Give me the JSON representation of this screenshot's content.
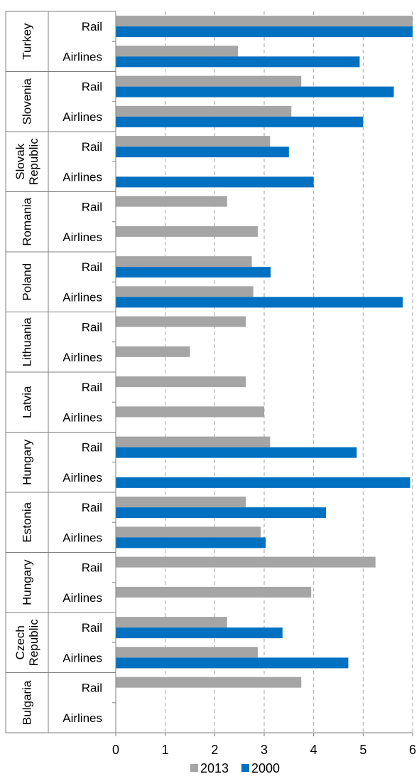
{
  "chart_data": {
    "type": "bar",
    "orientation": "horizontal",
    "groups": [
      {
        "name": "Turkey",
        "lines": [
          "Turkey"
        ]
      },
      {
        "name": "Slovenia",
        "lines": [
          "Slovenia"
        ]
      },
      {
        "name": "Slovak Republic",
        "lines": [
          "Slovak",
          "Republic"
        ]
      },
      {
        "name": "Romania",
        "lines": [
          "Romania"
        ]
      },
      {
        "name": "Poland",
        "lines": [
          "Poland"
        ]
      },
      {
        "name": "Lithuania",
        "lines": [
          "Lithuania"
        ]
      },
      {
        "name": "Latvia",
        "lines": [
          "Latvia"
        ]
      },
      {
        "name": "Hungary",
        "lines": [
          "Hungary"
        ]
      },
      {
        "name": "Estonia",
        "lines": [
          "Estonia"
        ]
      },
      {
        "name": "Hungary",
        "lines": [
          "Hungary"
        ]
      },
      {
        "name": "Czech Republic",
        "lines": [
          "Czech",
          "Republic"
        ]
      },
      {
        "name": "Bulgaria",
        "lines": [
          "Bulgaria"
        ]
      }
    ],
    "subcategories": [
      "Rail",
      "Airlines"
    ],
    "series": [
      {
        "name": "2013",
        "color": "#a5a5a5",
        "values": [
          [
            6.0,
            2.47
          ],
          [
            3.75,
            3.55
          ],
          [
            3.12,
            null
          ],
          [
            2.25,
            2.87
          ],
          [
            2.75,
            2.78
          ],
          [
            2.63,
            1.5
          ],
          [
            2.63,
            3.0
          ],
          [
            3.12,
            null
          ],
          [
            2.63,
            2.93
          ],
          [
            5.25,
            3.95
          ],
          [
            2.25,
            2.87
          ],
          [
            3.75,
            null
          ]
        ]
      },
      {
        "name": "2000",
        "color": "#0070c0",
        "values": [
          [
            6.0,
            4.93
          ],
          [
            5.62,
            5.0
          ],
          [
            3.5,
            4.0
          ],
          [
            null,
            null
          ],
          [
            3.13,
            5.8
          ],
          [
            null,
            null
          ],
          [
            null,
            null
          ],
          [
            4.87,
            5.95
          ],
          [
            4.25,
            3.03
          ],
          [
            null,
            null
          ],
          [
            3.37,
            4.7
          ],
          [
            null,
            null
          ]
        ]
      }
    ],
    "x_ticks": [
      "0",
      "1",
      "2",
      "3",
      "4",
      "5",
      "6"
    ],
    "xlim": [
      0,
      6
    ],
    "grid": "vertical-dashed",
    "legend_position": "bottom"
  }
}
